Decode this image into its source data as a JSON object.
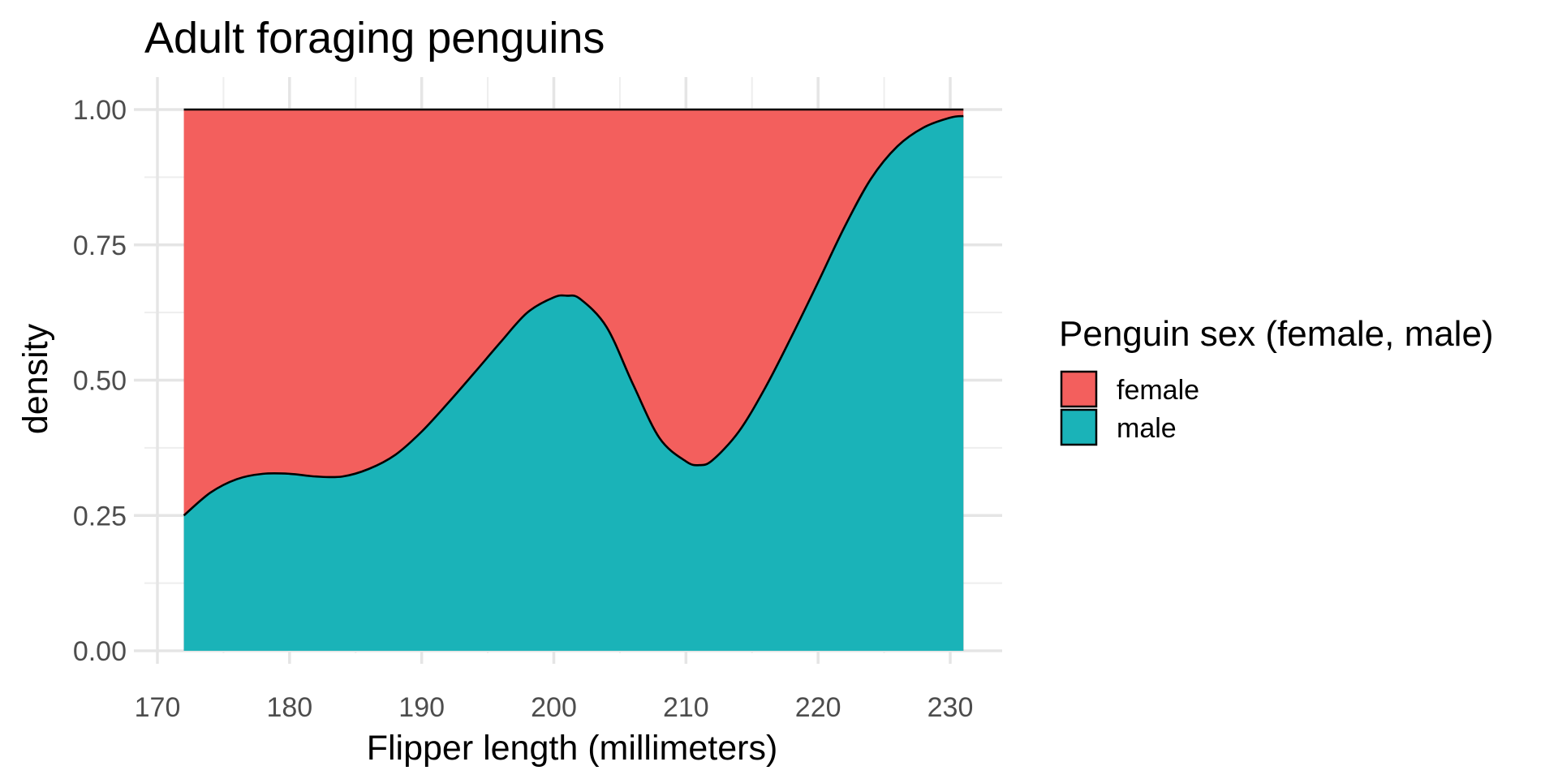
{
  "chart_data": {
    "type": "area",
    "subtype": "conditional-density (position: fill)",
    "title": "Adult foraging penguins",
    "xlabel": "Flipper length (millimeters)",
    "ylabel": "density",
    "xlim": [
      169,
      233
    ],
    "ylim": [
      0,
      1
    ],
    "x_ticks": [
      170,
      180,
      190,
      200,
      210,
      220,
      230
    ],
    "x_tick_labels": [
      "170",
      "180",
      "190",
      "200",
      "210",
      "220",
      "230"
    ],
    "y_ticks": [
      0,
      0.25,
      0.5,
      0.75,
      1
    ],
    "y_tick_labels": [
      "0.00",
      "0.25",
      "0.50",
      "0.75",
      "1.00"
    ],
    "grid": true,
    "legend": {
      "title": "Penguin sex (female, male)",
      "position": "right",
      "entries": [
        {
          "label": "female",
          "color": "#F35F5D"
        },
        {
          "label": "male",
          "color": "#1AB3B8"
        }
      ]
    },
    "series": [
      {
        "name": "female",
        "color": "#F35F5D"
      },
      {
        "name": "male",
        "color": "#1AB3B8"
      }
    ],
    "x": [
      172,
      174,
      176,
      178,
      180,
      182,
      184,
      186,
      188,
      190,
      192,
      194,
      196,
      198,
      200,
      201,
      202,
      204,
      206,
      208,
      210,
      211,
      212,
      214,
      216,
      218,
      220,
      222,
      224,
      226,
      228,
      230,
      231
    ],
    "male_fraction": [
      0.25,
      0.292,
      0.317,
      0.327,
      0.327,
      0.322,
      0.322,
      0.336,
      0.362,
      0.405,
      0.458,
      0.514,
      0.571,
      0.625,
      0.653,
      0.656,
      0.65,
      0.598,
      0.492,
      0.393,
      0.35,
      0.343,
      0.352,
      0.405,
      0.486,
      0.581,
      0.681,
      0.783,
      0.872,
      0.932,
      0.967,
      0.985,
      0.988
    ]
  }
}
